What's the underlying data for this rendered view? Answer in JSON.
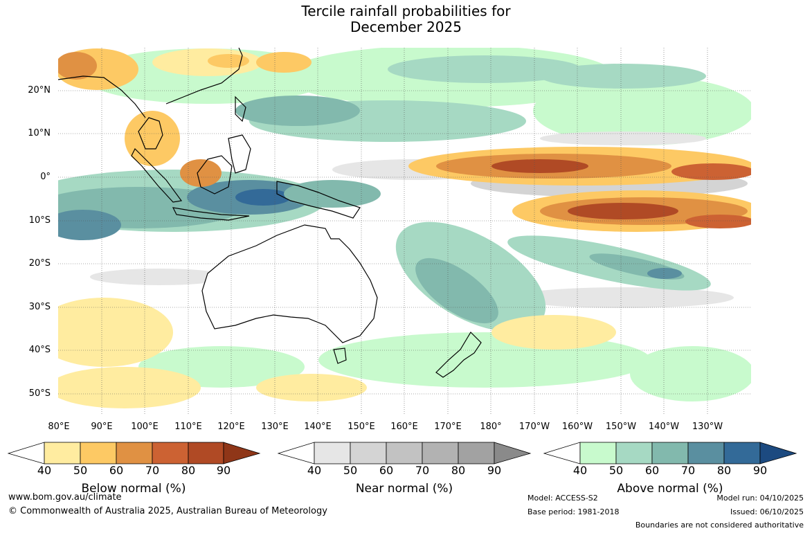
{
  "title": {
    "line1": "Tercile rainfall probabilities for",
    "line2": "December 2025"
  },
  "map": {
    "latitude_labels": [
      "20°N",
      "10°N",
      "0°",
      "10°S",
      "20°S",
      "30°S",
      "40°S",
      "50°S"
    ],
    "longitude_labels": [
      "80°E",
      "90°E",
      "100°E",
      "110°E",
      "120°E",
      "130°E",
      "140°E",
      "150°E",
      "160°E",
      "170°E",
      "180°",
      "170°W",
      "160°W",
      "150°W",
      "140°W",
      "130°W"
    ]
  },
  "legends": {
    "below": {
      "title": "Below normal (%)",
      "ticks": [
        "40",
        "50",
        "60",
        "70",
        "80",
        "90"
      ],
      "colors": [
        "#ffffff",
        "#ffeca0",
        "#fdc964",
        "#e09143",
        "#cc6233",
        "#b04a25",
        "#8f3618"
      ]
    },
    "near": {
      "title": "Near normal (%)",
      "ticks": [
        "40",
        "50",
        "60",
        "70",
        "80",
        "90"
      ],
      "colors": [
        "#ffffff",
        "#e6e6e6",
        "#d4d4d4",
        "#c2c2c2",
        "#b2b2b2",
        "#a2a2a2",
        "#8a8a8a"
      ]
    },
    "above": {
      "title": "Above normal (%)",
      "ticks": [
        "40",
        "50",
        "60",
        "70",
        "80",
        "90"
      ],
      "colors": [
        "#ffffff",
        "#c8facd",
        "#a6d9c3",
        "#82b9ad",
        "#5a8fa0",
        "#336a98",
        "#1c4a80"
      ]
    }
  },
  "footer": {
    "website": "www.bom.gov.au/climate",
    "copyright": "© Commonwealth of Australia 2025, Australian Bureau of Meteorology",
    "model": "Model: ACCESS-S2",
    "base_period": "Base period: 1981-2018",
    "model_run": "Model run: 04/10/2025",
    "issued": "Issued: 06/10/2025",
    "disclaimer": "Boundaries are not considered authoritative"
  }
}
